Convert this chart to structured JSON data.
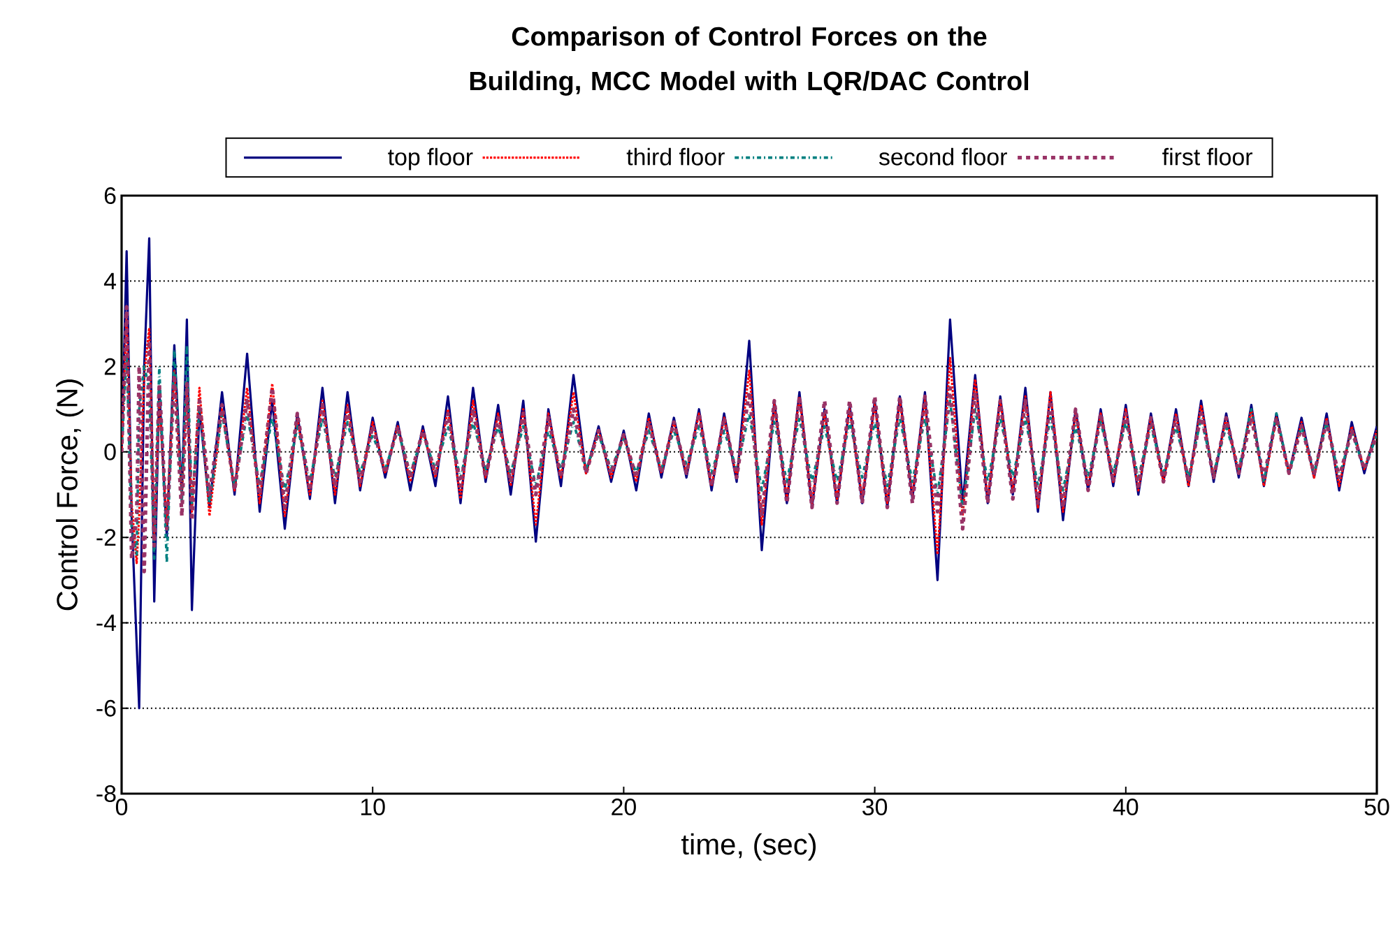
{
  "chart_data": {
    "type": "line",
    "title": "Comparison of Control Forces on the Building, MCC Model with LQR/DAC Control",
    "xlabel": "time, (sec)",
    "ylabel": "Control Force, (N)",
    "x": [
      0,
      0.2,
      0.4,
      0.6,
      0.7,
      0.9,
      1.1,
      1.3,
      1.5,
      1.8,
      2.1,
      2.4,
      2.6,
      2.8,
      3.1,
      3.5,
      4.0,
      4.5,
      5,
      5.5,
      6,
      6.5,
      7,
      7.5,
      8,
      8.5,
      9,
      9.5,
      10,
      10.5,
      11,
      11.5,
      12,
      12.5,
      13,
      13.5,
      14,
      14.5,
      15,
      15.5,
      16,
      16.5,
      17,
      17.5,
      18,
      18.5,
      19,
      19.5,
      20,
      20.5,
      21,
      21.5,
      22,
      22.5,
      23,
      23.5,
      24,
      24.5,
      25,
      25.5,
      26,
      26.5,
      27,
      27.5,
      28,
      28.5,
      29,
      29.5,
      30,
      30.5,
      31,
      31.5,
      32,
      32.5,
      33,
      33.5,
      34,
      34.5,
      35,
      35.5,
      36,
      36.5,
      37,
      37.5,
      38,
      38.5,
      39,
      39.5,
      40,
      40.5,
      41,
      41.5,
      42,
      42.5,
      43,
      43.5,
      44,
      44.5,
      45,
      45.5,
      46,
      46.5,
      47,
      47.5,
      48,
      48.5,
      49,
      49.5,
      50
    ],
    "series": [
      {
        "name": "top floor",
        "color": "#000080",
        "line_style": "solid",
        "values": [
          0,
          4.7,
          -1.5,
          -4.5,
          -6.0,
          2.0,
          5.0,
          -3.5,
          1.5,
          -2.0,
          2.5,
          -1.0,
          3.1,
          -3.7,
          1.0,
          -1.3,
          1.4,
          -1.0,
          2.3,
          -1.4,
          1.2,
          -1.8,
          0.9,
          -1.1,
          1.5,
          -1.2,
          1.4,
          -0.9,
          0.8,
          -0.6,
          0.7,
          -0.9,
          0.6,
          -0.8,
          1.3,
          -1.2,
          1.5,
          -0.7,
          1.1,
          -1.0,
          1.2,
          -2.1,
          1.0,
          -0.8,
          1.8,
          -0.5,
          0.6,
          -0.7,
          0.5,
          -0.9,
          0.9,
          -0.6,
          0.8,
          -0.6,
          1.0,
          -0.9,
          0.9,
          -0.7,
          2.6,
          -2.3,
          1.2,
          -1.2,
          1.4,
          -1.3,
          1.0,
          -1.2,
          1.1,
          -1.2,
          1.2,
          -1.3,
          1.3,
          -1.1,
          1.4,
          -3.0,
          3.1,
          -1.2,
          1.8,
          -1.2,
          1.3,
          -1.0,
          1.5,
          -1.4,
          1.4,
          -1.6,
          1.0,
          -0.9,
          1.0,
          -0.8,
          1.1,
          -1.0,
          0.9,
          -0.7,
          1.0,
          -0.8,
          1.2,
          -0.7,
          0.9,
          -0.6,
          1.1,
          -0.8,
          0.9,
          -0.5,
          0.8,
          -0.6,
          0.9,
          -0.9,
          0.7,
          -0.5,
          0.6
        ]
      },
      {
        "name": "third floor",
        "color": "#ff0000",
        "line_style": "dotted",
        "values": [
          0,
          3.2,
          -1.2,
          -2.6,
          -1.5,
          1.8,
          2.9,
          -2.0,
          1.2,
          -1.7,
          1.9,
          -1.1,
          1.5,
          -1.4,
          1.5,
          -1.5,
          1.0,
          -0.9,
          1.5,
          -1.2,
          1.6,
          -1.5,
          0.8,
          -1.0,
          1.2,
          -1.0,
          1.1,
          -0.8,
          0.7,
          -0.5,
          0.6,
          -0.7,
          0.5,
          -0.6,
          1.0,
          -1.1,
          1.2,
          -0.6,
          0.9,
          -0.8,
          1.0,
          -1.7,
          0.9,
          -0.6,
          1.4,
          -0.5,
          0.5,
          -0.6,
          0.4,
          -0.7,
          0.8,
          -0.5,
          0.7,
          -0.5,
          0.9,
          -0.8,
          0.8,
          -0.6,
          1.9,
          -1.7,
          1.1,
          -1.1,
          1.3,
          -1.2,
          0.9,
          -1.1,
          1.0,
          -1.1,
          1.1,
          -1.2,
          1.2,
          -1.0,
          1.2,
          -2.4,
          2.2,
          -1.5,
          1.7,
          -1.1,
          1.2,
          -0.9,
          1.3,
          -1.3,
          1.4,
          -1.4,
          0.9,
          -0.8,
          0.9,
          -0.7,
          1.0,
          -0.9,
          0.8,
          -0.7,
          0.9,
          -0.8,
          1.1,
          -0.6,
          0.8,
          -0.5,
          1.0,
          -0.8,
          0.8,
          -0.5,
          0.7,
          -0.6,
          0.8,
          -0.8,
          0.6,
          -0.4,
          0.5
        ]
      },
      {
        "name": "second floor",
        "color": "#008080",
        "line_style": "dashdot",
        "values": [
          0,
          2.3,
          -1.8,
          -2.4,
          1.0,
          2.0,
          1.5,
          -2.5,
          2.0,
          -2.6,
          2.4,
          -1.2,
          2.5,
          -1.2,
          1.0,
          -1.2,
          0.9,
          -0.8,
          0.9,
          -0.8,
          0.8,
          -0.9,
          0.6,
          -0.7,
          0.8,
          -0.6,
          0.7,
          -0.5,
          0.4,
          -0.4,
          0.5,
          -0.5,
          0.4,
          -0.4,
          0.6,
          -0.6,
          0.7,
          -0.4,
          0.6,
          -0.5,
          0.6,
          -0.8,
          0.5,
          -0.4,
          0.7,
          -0.4,
          0.4,
          -0.4,
          0.3,
          -0.5,
          0.5,
          -0.4,
          0.5,
          -0.3,
          0.6,
          -0.5,
          0.5,
          -0.4,
          0.9,
          -0.9,
          0.7,
          -0.7,
          0.8,
          -0.7,
          0.6,
          -0.7,
          0.7,
          -0.6,
          0.7,
          -0.8,
          0.8,
          -0.7,
          0.8,
          -1.0,
          1.2,
          -1.3,
          1.0,
          -0.7,
          0.8,
          -0.6,
          0.8,
          -0.8,
          0.8,
          -0.9,
          0.6,
          -0.6,
          0.7,
          -0.5,
          0.7,
          -0.6,
          0.6,
          -0.5,
          0.6,
          -0.6,
          0.8,
          -0.5,
          0.6,
          -0.4,
          1.0,
          -0.7,
          0.9,
          -0.5,
          0.6,
          -0.5,
          0.7,
          -0.6,
          0.5,
          -0.4,
          0.4
        ]
      },
      {
        "name": "first floor",
        "color": "#993366",
        "line_style": "dashed",
        "values": [
          0,
          3.4,
          -2.5,
          -1.5,
          2.0,
          -2.8,
          2.6,
          -2.2,
          1.6,
          -1.8,
          1.8,
          -1.5,
          1.6,
          -1.6,
          1.2,
          -1.0,
          1.1,
          -0.9,
          1.2,
          -1.0,
          1.5,
          -1.3,
          0.9,
          -0.9,
          1.1,
          -0.8,
          1.0,
          -0.7,
          0.6,
          -0.5,
          0.6,
          -0.6,
          0.5,
          -0.5,
          0.9,
          -0.8,
          1.0,
          -0.6,
          0.8,
          -0.7,
          0.9,
          -1.0,
          0.8,
          -0.6,
          1.0,
          -0.5,
          0.5,
          -0.5,
          0.4,
          -0.6,
          0.7,
          -0.5,
          0.7,
          -0.5,
          0.9,
          -0.8,
          0.8,
          -0.6,
          1.4,
          -1.5,
          1.2,
          -1.2,
          1.3,
          -1.3,
          1.2,
          -1.2,
          1.2,
          -1.2,
          1.3,
          -1.3,
          1.3,
          -1.2,
          1.3,
          -1.4,
          1.5,
          -1.8,
          1.4,
          -1.2,
          1.2,
          -1.1,
          1.2,
          -1.2,
          1.2,
          -1.3,
          1.0,
          -0.9,
          0.9,
          -0.7,
          0.9,
          -0.8,
          0.8,
          -0.7,
          0.8,
          -0.7,
          0.9,
          -0.6,
          0.8,
          -0.5,
          0.8,
          -0.6,
          0.8,
          -0.5,
          0.6,
          -0.5,
          0.7,
          -0.6,
          0.5,
          -0.4,
          0.4
        ]
      }
    ],
    "xlim": [
      0,
      50
    ],
    "xticks": [
      0,
      10,
      20,
      30,
      40,
      50
    ],
    "ylim": [
      -8,
      6
    ],
    "yticks": [
      -8,
      -6,
      -4,
      -2,
      0,
      2,
      4,
      6
    ],
    "grid": "y",
    "legend": "top",
    "marker": "none"
  }
}
